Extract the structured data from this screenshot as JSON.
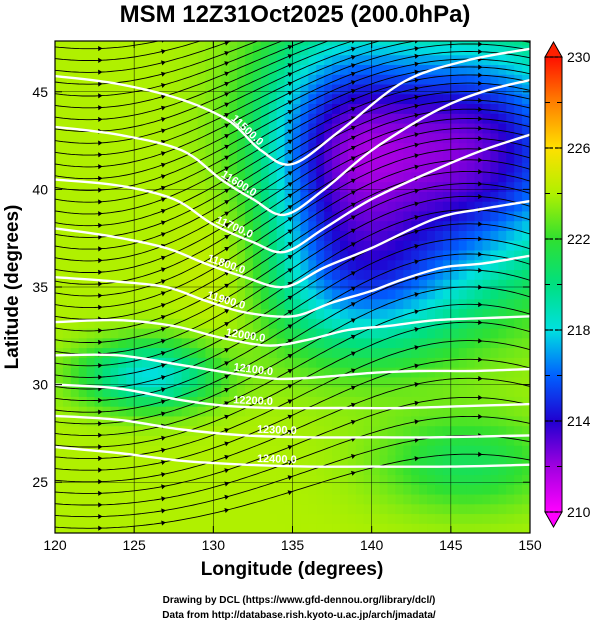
{
  "chart_data": {
    "type": "heatmap",
    "title": "MSM 12Z31Oct2025 (200.0hPa)",
    "xlabel": "Longitude (degrees)",
    "ylabel": "Latitude  (degrees)",
    "xlim": [
      120,
      150
    ],
    "ylim": [
      22.4,
      47.6
    ],
    "x_ticks": [
      120,
      125,
      130,
      135,
      140,
      145,
      150
    ],
    "y_ticks": [
      25,
      30,
      35,
      40,
      45
    ],
    "colorbar": {
      "range": [
        210,
        230
      ],
      "ticks": [
        210,
        214,
        218,
        222,
        226,
        230
      ],
      "stops": [
        {
          "value": 210,
          "color": "#ff00ff"
        },
        {
          "value": 212,
          "color": "#a000e0"
        },
        {
          "value": 214,
          "color": "#2000d0"
        },
        {
          "value": 216,
          "color": "#0060ff"
        },
        {
          "value": 218,
          "color": "#00e0e0"
        },
        {
          "value": 220,
          "color": "#00e080"
        },
        {
          "value": 222,
          "color": "#30e030"
        },
        {
          "value": 224,
          "color": "#b0f000"
        },
        {
          "value": 226,
          "color": "#ffe000"
        },
        {
          "value": 228,
          "color": "#ff8000"
        },
        {
          "value": 230,
          "color": "#ff1000"
        }
      ],
      "extend_colors": {
        "low": "#ff00ff",
        "high": "#ff2000"
      }
    },
    "temperature_field_description": "warm west, cold core northeast",
    "contours": [
      {
        "label": "11500.0",
        "points": [
          [
            120,
            45.8
          ],
          [
            124,
            45.4
          ],
          [
            128,
            44.6
          ],
          [
            131,
            43.5
          ],
          [
            133,
            42
          ],
          [
            135,
            41.3
          ],
          [
            138,
            43
          ],
          [
            142,
            45.5
          ],
          [
            146,
            46.6
          ],
          [
            150,
            47.2
          ]
        ]
      },
      {
        "label": "11600.0",
        "points": [
          [
            120,
            43.2
          ],
          [
            124,
            42.8
          ],
          [
            128,
            42
          ],
          [
            130.5,
            40.5
          ],
          [
            132.5,
            39.5
          ],
          [
            134.5,
            38.7
          ],
          [
            137,
            40
          ],
          [
            140,
            42
          ],
          [
            144,
            44
          ],
          [
            147,
            45
          ],
          [
            150,
            45.6
          ]
        ]
      },
      {
        "label": "11700.0",
        "points": [
          [
            120,
            40.5
          ],
          [
            124,
            40.2
          ],
          [
            127.5,
            39.5
          ],
          [
            130,
            38.2
          ],
          [
            132.5,
            37.3
          ],
          [
            134.5,
            36.8
          ],
          [
            137,
            38
          ],
          [
            140,
            39.5
          ],
          [
            144,
            41
          ],
          [
            147,
            42
          ],
          [
            150,
            42.8
          ]
        ]
      },
      {
        "label": "11800.0",
        "points": [
          [
            120,
            38
          ],
          [
            123.5,
            37.6
          ],
          [
            127,
            37
          ],
          [
            129.5,
            36.2
          ],
          [
            132,
            35.5
          ],
          [
            134.5,
            35
          ],
          [
            137,
            36
          ],
          [
            140,
            37
          ],
          [
            144,
            38.5
          ],
          [
            147,
            39
          ],
          [
            150,
            39.4
          ]
        ]
      },
      {
        "label": "11900.0",
        "points": [
          [
            120,
            35.5
          ],
          [
            123.5,
            35.3
          ],
          [
            127,
            35
          ],
          [
            129.5,
            34.3
          ],
          [
            132,
            33.7
          ],
          [
            135,
            33.5
          ],
          [
            137.5,
            34.2
          ],
          [
            140,
            34.8
          ],
          [
            142,
            35.4
          ],
          [
            144.5,
            36
          ],
          [
            147,
            36.2
          ],
          [
            150,
            36.6
          ]
        ]
      },
      {
        "label": "12000.0",
        "points": [
          [
            120,
            33.2
          ],
          [
            124,
            33.3
          ],
          [
            127.5,
            33
          ],
          [
            130.5,
            32.4
          ],
          [
            133.5,
            32
          ],
          [
            136,
            32.3
          ],
          [
            138.5,
            32.8
          ],
          [
            141,
            33
          ],
          [
            144,
            33.3
          ],
          [
            147,
            33.4
          ],
          [
            150,
            33.5
          ]
        ]
      },
      {
        "label": "12100.0",
        "points": [
          [
            120,
            31.5
          ],
          [
            124,
            31.5
          ],
          [
            128,
            31
          ],
          [
            131,
            30.6
          ],
          [
            134,
            30.3
          ],
          [
            137,
            30.4
          ],
          [
            140,
            30.6
          ],
          [
            143,
            30.7
          ],
          [
            146.5,
            30.7
          ],
          [
            150,
            30.8
          ]
        ]
      },
      {
        "label": "12200.0",
        "points": [
          [
            120,
            30
          ],
          [
            124,
            29.8
          ],
          [
            128,
            29.2
          ],
          [
            131,
            28.9
          ],
          [
            134,
            28.8
          ],
          [
            138,
            28.8
          ],
          [
            142,
            28.8
          ],
          [
            146,
            28.9
          ],
          [
            150,
            29
          ]
        ]
      },
      {
        "label": "12300.0",
        "points": [
          [
            120,
            28.4
          ],
          [
            124,
            28.2
          ],
          [
            128,
            27.7
          ],
          [
            132,
            27.4
          ],
          [
            136,
            27.3
          ],
          [
            140,
            27.3
          ],
          [
            144,
            27.3
          ],
          [
            150,
            27.4
          ]
        ]
      },
      {
        "label": "12400.0",
        "points": [
          [
            120,
            26.8
          ],
          [
            124,
            26.5
          ],
          [
            128,
            26.1
          ],
          [
            132,
            25.9
          ],
          [
            136,
            25.8
          ],
          [
            140,
            25.8
          ],
          [
            145,
            25.8
          ],
          [
            150,
            25.9
          ]
        ]
      }
    ]
  },
  "credits": [
    "Drawing by DCL (https://www.gfd-dennou.org/library/dcl/)",
    "Data from http://database.rish.kyoto-u.ac.jp/arch/jmadata/"
  ]
}
